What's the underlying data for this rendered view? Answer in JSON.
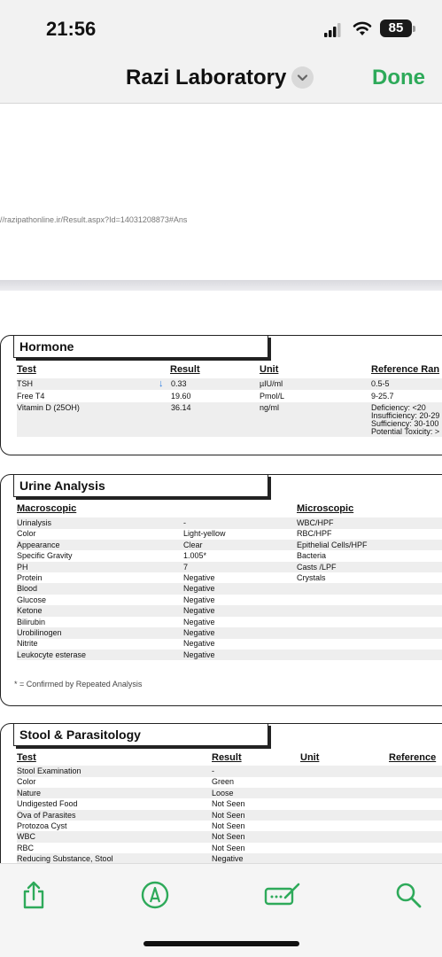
{
  "status_bar": {
    "time": "21:56",
    "battery": "85"
  },
  "nav": {
    "title": "Razi Laboratory",
    "done_label": "Done"
  },
  "document": {
    "url": "//razipathonline.ir/Result.aspx?Id=14031208873#Ans",
    "hormone": {
      "title": "Hormone",
      "headers": {
        "test": "Test",
        "result": "Result",
        "unit": "Unit",
        "reference": "Reference Ran"
      },
      "rows": [
        {
          "test": "TSH",
          "result": "0.33",
          "unit": "µIU/ml",
          "reference": "0.5-5",
          "flag": "low"
        },
        {
          "test": "Free T4",
          "result": "19.60",
          "unit": "Pmol/L",
          "reference": "9-25.7"
        },
        {
          "test": "Vitamin D (25OH)",
          "result": "36.14",
          "unit": "ng/ml",
          "reference": "Deficiency: <20"
        }
      ],
      "vitd_reference_extra": [
        "Insufficiency: 20-29",
        "Sufficiency: 30-100",
        "Potential Toxicity: >"
      ]
    },
    "urine": {
      "title": "Urine Analysis",
      "macroscopic_header": "Macroscopic",
      "microscopic_header": "Microscopic",
      "macroscopic": [
        {
          "test": "Urinalysis",
          "result": "-"
        },
        {
          "test": "Color",
          "result": "Light-yellow"
        },
        {
          "test": "Appearance",
          "result": "Clear"
        },
        {
          "test": "Specific Gravity",
          "result": "1.005*"
        },
        {
          "test": "PH",
          "result": "7"
        },
        {
          "test": "Protein",
          "result": "Negative"
        },
        {
          "test": "Blood",
          "result": "Negative"
        },
        {
          "test": "Glucose",
          "result": "Negative"
        },
        {
          "test": "Ketone",
          "result": "Negative"
        },
        {
          "test": "Bilirubin",
          "result": "Negative"
        },
        {
          "test": "Urobilinogen",
          "result": "Negative"
        },
        {
          "test": "Nitrite",
          "result": "Negative"
        },
        {
          "test": "Leukocyte esterase",
          "result": "Negative"
        }
      ],
      "microscopic": [
        "WBC/HPF",
        "RBC/HPF",
        "Epithelial Cells/HPF",
        "Bacteria",
        "Casts /LPF",
        "Crystals"
      ],
      "note": "* = Confirmed by Repeated Analysis"
    },
    "stool": {
      "title": "Stool & Parasitology",
      "headers": {
        "test": "Test",
        "result": "Result",
        "unit": "Unit",
        "reference": "Reference"
      },
      "rows": [
        {
          "test": "Stool Examination",
          "result": "-"
        },
        {
          "test": "Color",
          "result": "Green"
        },
        {
          "test": "Nature",
          "result": "Loose"
        },
        {
          "test": "Undigested Food",
          "result": "Not Seen"
        },
        {
          "test": "Ova of Parasites",
          "result": "Not Seen"
        },
        {
          "test": "Protozoa Cyst",
          "result": "Not Seen"
        },
        {
          "test": "WBC",
          "result": "Not Seen"
        },
        {
          "test": "RBC",
          "result": "Not Seen"
        },
        {
          "test": "Reducing Substance, Stool",
          "result": "Negative"
        }
      ]
    }
  },
  "toolbar": {
    "accent": "#2eaa5a",
    "icons": [
      "share-icon",
      "markup-icon",
      "signature-icon",
      "search-icon"
    ]
  }
}
